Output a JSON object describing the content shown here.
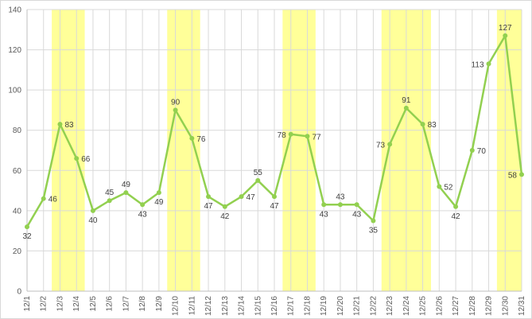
{
  "chart_data": {
    "type": "line",
    "title": "",
    "xlabel": "",
    "ylabel": "",
    "ylim": [
      0,
      140
    ],
    "yticks": [
      0,
      20,
      40,
      60,
      80,
      100,
      120,
      140
    ],
    "grid": "vertical-and-horizontal",
    "legend": "none",
    "categories": [
      "12/1",
      "12/2",
      "12/3",
      "12/4",
      "12/5",
      "12/6",
      "12/7",
      "12/8",
      "12/9",
      "12/10",
      "12/11",
      "12/12",
      "12/13",
      "12/14",
      "12/15",
      "12/16",
      "12/17",
      "12/18",
      "12/19",
      "12/20",
      "12/21",
      "12/22",
      "12/23",
      "12/24",
      "12/25",
      "12/26",
      "12/27",
      "12/28",
      "12/29",
      "12/30",
      "12/31"
    ],
    "series": [
      {
        "values": [
          32,
          46,
          83,
          66,
          40,
          45,
          49,
          43,
          49,
          90,
          76,
          47,
          42,
          47,
          55,
          47,
          78,
          77,
          43,
          43,
          43,
          35,
          73,
          91,
          83,
          52,
          42,
          70,
          113,
          127,
          58
        ]
      }
    ],
    "highlighted_ranges": [
      {
        "from": "12/3",
        "to": "12/4"
      },
      {
        "from": "12/10",
        "to": "12/11"
      },
      {
        "from": "12/17",
        "to": "12/18"
      },
      {
        "from": "12/23",
        "to": "12/25"
      },
      {
        "from": "12/30",
        "to": "12/31"
      }
    ],
    "label_positions": [
      "below",
      "right",
      "right",
      "right",
      "below",
      "above",
      "above",
      "below",
      "below",
      "above",
      "right",
      "below",
      "below",
      "right",
      "above",
      "below",
      "left",
      "right",
      "below",
      "above",
      "below",
      "below",
      "left",
      "above",
      "right",
      "right",
      "below",
      "right",
      "left",
      "above",
      "left"
    ],
    "colors": {
      "line": "#92d050",
      "marker": "#92d050",
      "highlight": "#ffff99",
      "grid": "#d9d9d9",
      "axis": "#bfbfbf"
    }
  }
}
